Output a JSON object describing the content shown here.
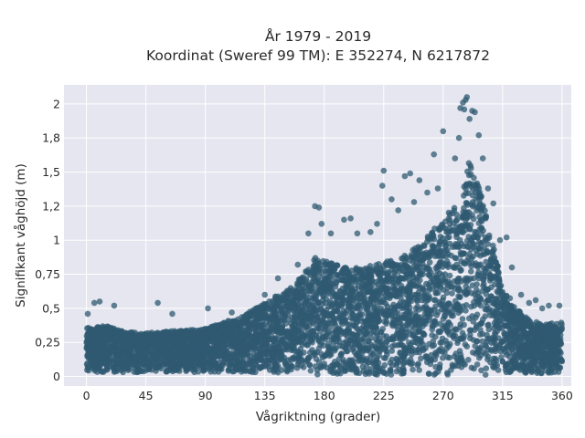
{
  "chart_data": {
    "type": "scatter",
    "title_line1": "År 1979 - 2019",
    "title_line2": "Koordinat (Sweref 99 TM): E 352274, N 6217872",
    "xlabel": "Vågriktning (grader)",
    "ylabel": "Signifikant våghöjd (m)",
    "xlim": [
      -17,
      367
    ],
    "ylim": [
      -0.07,
      2.14
    ],
    "x_ticks": [
      0,
      45,
      90,
      135,
      180,
      225,
      270,
      315,
      360
    ],
    "x_tick_labels": [
      "0",
      "45",
      "90",
      "135",
      "180",
      "225",
      "270",
      "315",
      "360"
    ],
    "y_ticks": [
      0,
      0.25,
      0.5,
      0.75,
      1,
      1.25,
      1.5,
      1.75,
      2
    ],
    "y_tick_labels": [
      "0",
      "0,25",
      "0,5",
      "0,75",
      "1",
      "1,2",
      "1,5",
      "1,8",
      "2"
    ],
    "grid": true,
    "marker_color": "#2f5a72",
    "plot_background": "#e5e6ef",
    "envelope": {
      "x": [
        0,
        15,
        30,
        45,
        60,
        75,
        90,
        105,
        120,
        135,
        150,
        165,
        170,
        180,
        195,
        210,
        225,
        240,
        255,
        270,
        285,
        290,
        300,
        315,
        330,
        345,
        360
      ],
      "y_low": [
        0.03,
        0.03,
        0.03,
        0.03,
        0.03,
        0.03,
        0.03,
        0.03,
        0.03,
        0.03,
        0.02,
        0.02,
        0.01,
        0.01,
        0.01,
        0.01,
        0.01,
        0.01,
        0.01,
        0.01,
        0.01,
        0.01,
        0.01,
        0.02,
        0.02,
        0.02,
        0.03
      ],
      "y_dense_top": [
        0.36,
        0.37,
        0.33,
        0.32,
        0.33,
        0.34,
        0.35,
        0.4,
        0.45,
        0.55,
        0.62,
        0.75,
        0.88,
        0.85,
        0.8,
        0.8,
        0.84,
        0.88,
        1.0,
        1.15,
        1.35,
        1.6,
        1.3,
        0.65,
        0.45,
        0.38,
        0.4
      ]
    },
    "outliers": [
      {
        "x": 1,
        "y": 0.46
      },
      {
        "x": 6,
        "y": 0.54
      },
      {
        "x": 10,
        "y": 0.55
      },
      {
        "x": 21,
        "y": 0.52
      },
      {
        "x": 54,
        "y": 0.54
      },
      {
        "x": 65,
        "y": 0.46
      },
      {
        "x": 92,
        "y": 0.5
      },
      {
        "x": 110,
        "y": 0.47
      },
      {
        "x": 135,
        "y": 0.6
      },
      {
        "x": 145,
        "y": 0.72
      },
      {
        "x": 160,
        "y": 0.82
      },
      {
        "x": 168,
        "y": 1.05
      },
      {
        "x": 173,
        "y": 1.25
      },
      {
        "x": 176,
        "y": 1.24
      },
      {
        "x": 178,
        "y": 1.12
      },
      {
        "x": 185,
        "y": 1.05
      },
      {
        "x": 195,
        "y": 1.15
      },
      {
        "x": 200,
        "y": 1.16
      },
      {
        "x": 205,
        "y": 1.05
      },
      {
        "x": 215,
        "y": 1.06
      },
      {
        "x": 220,
        "y": 1.12
      },
      {
        "x": 224,
        "y": 1.4
      },
      {
        "x": 225,
        "y": 1.51
      },
      {
        "x": 231,
        "y": 1.3
      },
      {
        "x": 236,
        "y": 1.22
      },
      {
        "x": 241,
        "y": 1.47
      },
      {
        "x": 245,
        "y": 1.49
      },
      {
        "x": 248,
        "y": 1.28
      },
      {
        "x": 252,
        "y": 1.44
      },
      {
        "x": 258,
        "y": 1.35
      },
      {
        "x": 263,
        "y": 1.63
      },
      {
        "x": 266,
        "y": 1.38
      },
      {
        "x": 270,
        "y": 1.8
      },
      {
        "x": 279,
        "y": 1.6
      },
      {
        "x": 282,
        "y": 1.75
      },
      {
        "x": 283,
        "y": 1.97
      },
      {
        "x": 286,
        "y": 1.96
      },
      {
        "x": 285,
        "y": 2.01
      },
      {
        "x": 287,
        "y": 2.03
      },
      {
        "x": 288,
        "y": 2.05
      },
      {
        "x": 290,
        "y": 1.89
      },
      {
        "x": 292,
        "y": 1.95
      },
      {
        "x": 294,
        "y": 1.94
      },
      {
        "x": 297,
        "y": 1.77
      },
      {
        "x": 300,
        "y": 1.6
      },
      {
        "x": 304,
        "y": 1.38
      },
      {
        "x": 308,
        "y": 1.27
      },
      {
        "x": 313,
        "y": 1.0
      },
      {
        "x": 318,
        "y": 1.02
      },
      {
        "x": 322,
        "y": 0.8
      },
      {
        "x": 329,
        "y": 0.6
      },
      {
        "x": 335,
        "y": 0.54
      },
      {
        "x": 340,
        "y": 0.56
      },
      {
        "x": 345,
        "y": 0.5
      },
      {
        "x": 350,
        "y": 0.52
      },
      {
        "x": 358,
        "y": 0.52
      }
    ]
  }
}
